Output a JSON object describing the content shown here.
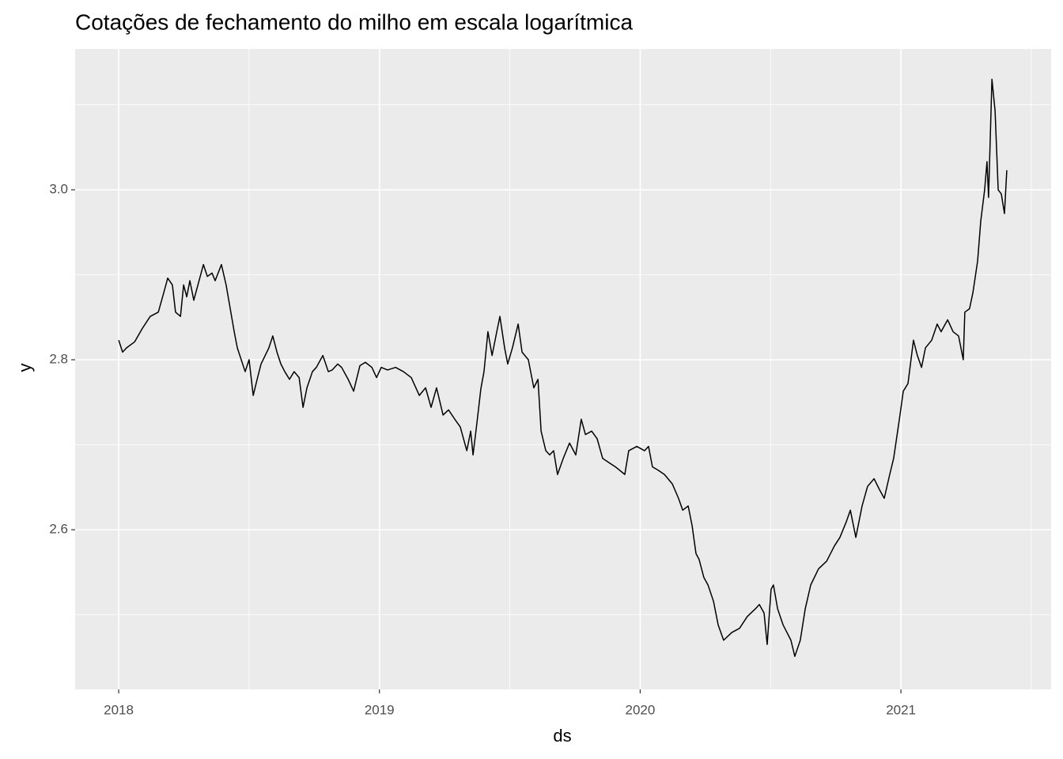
{
  "chart_data": {
    "type": "line",
    "title": "Cotações de fechamento do milho em escala logarítmica",
    "x_label": "ds",
    "y_label": "y",
    "xlim": [
      2017.833,
      2021.576
    ],
    "ylim": [
      2.4121,
      3.1656
    ],
    "xticks": [
      2018,
      2019,
      2020,
      2021
    ],
    "yticks": [
      {
        "value": 2.6,
        "label": "2.6"
      },
      {
        "value": 2.8,
        "label": "2.8"
      },
      {
        "value": 3.0,
        "label": "3.0"
      }
    ],
    "grid": true,
    "series": [
      {
        "color": "#000000",
        "x": [
          2018.0,
          2018.015,
          2018.03,
          2018.061,
          2018.091,
          2018.121,
          2018.152,
          2018.173,
          2018.188,
          2018.206,
          2018.218,
          2018.237,
          2018.249,
          2018.261,
          2018.273,
          2018.288,
          2018.303,
          2018.325,
          2018.34,
          2018.358,
          2018.37,
          2018.394,
          2018.412,
          2018.425,
          2018.443,
          2018.455,
          2018.47,
          2018.485,
          2018.5,
          2018.516,
          2018.531,
          2018.546,
          2018.576,
          2018.591,
          2018.607,
          2018.622,
          2018.637,
          2018.655,
          2018.673,
          2018.692,
          2018.707,
          2018.722,
          2018.743,
          2018.758,
          2018.783,
          2018.804,
          2018.819,
          2018.84,
          2018.855,
          2018.88,
          2018.901,
          2018.925,
          2018.946,
          2018.971,
          2018.989,
          2019.007,
          2019.031,
          2019.062,
          2019.092,
          2019.122,
          2019.153,
          2019.177,
          2019.198,
          2019.219,
          2019.244,
          2019.265,
          2019.289,
          2019.31,
          2019.335,
          2019.35,
          2019.359,
          2019.374,
          2019.389,
          2019.401,
          2019.416,
          2019.432,
          2019.45,
          2019.462,
          2019.48,
          2019.492,
          2019.51,
          2019.532,
          2019.547,
          2019.571,
          2019.592,
          2019.608,
          2019.62,
          2019.638,
          2019.653,
          2019.668,
          2019.683,
          2019.705,
          2019.729,
          2019.753,
          2019.774,
          2019.79,
          2019.814,
          2019.835,
          2019.856,
          2019.88,
          2019.905,
          2019.941,
          2019.956,
          2019.987,
          2020.017,
          2020.032,
          2020.047,
          2020.069,
          2020.093,
          2020.123,
          2020.147,
          2020.163,
          2020.184,
          2020.199,
          2020.214,
          2020.226,
          2020.244,
          2020.26,
          2020.281,
          2020.299,
          2020.32,
          2020.351,
          2020.381,
          2020.411,
          2020.442,
          2020.457,
          2020.475,
          2020.487,
          2020.502,
          2020.511,
          2020.527,
          2020.548,
          2020.563,
          2020.578,
          2020.593,
          2020.614,
          2020.633,
          2020.654,
          2020.684,
          2020.715,
          2020.745,
          2020.766,
          2020.79,
          2020.806,
          2020.827,
          2020.851,
          2020.872,
          2020.897,
          2020.918,
          2020.936,
          2020.957,
          2020.972,
          2020.994,
          2021.009,
          2021.027,
          2021.048,
          2021.063,
          2021.079,
          2021.094,
          2021.118,
          2021.139,
          2021.154,
          2021.179,
          2021.2,
          2021.221,
          2021.239,
          2021.245,
          2021.263,
          2021.276,
          2021.294,
          2021.306,
          2021.321,
          2021.33,
          2021.336,
          2021.349,
          2021.361,
          2021.373,
          2021.385,
          2021.397,
          2021.406
        ],
        "values": [
          2.823,
          2.809,
          2.814,
          2.821,
          2.837,
          2.851,
          2.856,
          2.879,
          2.896,
          2.888,
          2.856,
          2.851,
          2.888,
          2.874,
          2.893,
          2.87,
          2.887,
          2.912,
          2.898,
          2.902,
          2.893,
          2.912,
          2.888,
          2.865,
          2.833,
          2.814,
          2.8,
          2.786,
          2.8,
          2.758,
          2.777,
          2.795,
          2.814,
          2.828,
          2.809,
          2.795,
          2.786,
          2.777,
          2.786,
          2.779,
          2.744,
          2.767,
          2.786,
          2.791,
          2.805,
          2.786,
          2.788,
          2.795,
          2.791,
          2.777,
          2.763,
          2.793,
          2.797,
          2.791,
          2.779,
          2.791,
          2.788,
          2.791,
          2.786,
          2.779,
          2.758,
          2.767,
          2.744,
          2.767,
          2.735,
          2.741,
          2.73,
          2.721,
          2.693,
          2.716,
          2.688,
          2.726,
          2.766,
          2.786,
          2.833,
          2.805,
          2.833,
          2.851,
          2.814,
          2.795,
          2.814,
          2.842,
          2.809,
          2.8,
          2.767,
          2.777,
          2.716,
          2.693,
          2.688,
          2.693,
          2.665,
          2.684,
          2.702,
          2.688,
          2.73,
          2.712,
          2.716,
          2.707,
          2.684,
          2.679,
          2.674,
          2.665,
          2.693,
          2.698,
          2.693,
          2.698,
          2.674,
          2.67,
          2.665,
          2.654,
          2.637,
          2.623,
          2.628,
          2.605,
          2.572,
          2.565,
          2.544,
          2.535,
          2.516,
          2.488,
          2.47,
          2.479,
          2.484,
          2.498,
          2.507,
          2.512,
          2.502,
          2.465,
          2.53,
          2.535,
          2.507,
          2.488,
          2.479,
          2.47,
          2.451,
          2.47,
          2.507,
          2.535,
          2.554,
          2.563,
          2.581,
          2.591,
          2.609,
          2.623,
          2.591,
          2.628,
          2.651,
          2.66,
          2.647,
          2.637,
          2.665,
          2.684,
          2.73,
          2.763,
          2.772,
          2.823,
          2.805,
          2.791,
          2.814,
          2.823,
          2.842,
          2.833,
          2.847,
          2.833,
          2.828,
          2.8,
          2.856,
          2.86,
          2.879,
          2.916,
          2.963,
          3.0,
          3.033,
          2.991,
          3.13,
          3.093,
          3.0,
          2.995,
          2.972,
          3.023
        ]
      }
    ]
  }
}
